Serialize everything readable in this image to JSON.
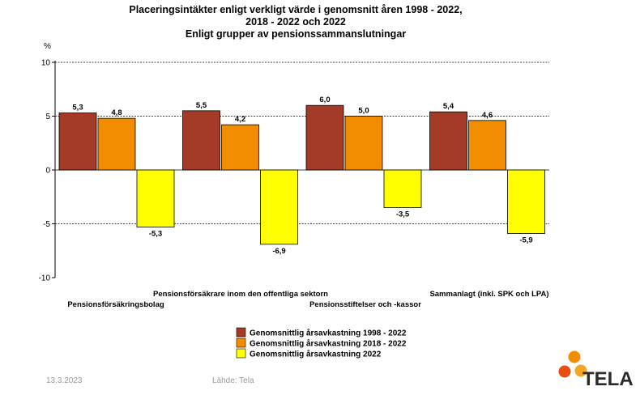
{
  "chart_data": {
    "type": "bar",
    "title_lines": [
      "Placeringsintäkter enligt verkligt värde i genomsnitt åren 1998 - 2022,",
      "2018 - 2022 och 2022",
      "Enligt grupper av pensionssammanslutningar"
    ],
    "ylabel": "%",
    "ylim": [
      -10,
      10
    ],
    "yticks": [
      10,
      5,
      0,
      -5,
      -10
    ],
    "grid": true,
    "legend_position": "bottom-center",
    "categories": [
      "Pensionsförsäkringsbolag",
      "Pensionsförsäkrare inom den offentliga sektorn",
      "Pensionsstiftelser och -kassor",
      "Sammanlagt (inkl. SPK och LPA)"
    ],
    "series": [
      {
        "name": "Genomsnittlig årsavkastning 1998 - 2022",
        "color": "#a33b26",
        "values": [
          5.3,
          5.5,
          6.0,
          5.4
        ],
        "labels": [
          "5,3",
          "5,5",
          "6,0",
          "5,4"
        ]
      },
      {
        "name": "Genomsnittlig årsavkastning 2018 - 2022",
        "color": "#f28c00",
        "values": [
          4.8,
          4.2,
          5.0,
          4.6
        ],
        "labels": [
          "4,8",
          "4,2",
          "5,0",
          "4,6"
        ]
      },
      {
        "name": "Genomsnittlig årsavkastning 2022",
        "color": "#ffff00",
        "values": [
          -5.3,
          -6.9,
          -3.5,
          -5.9
        ],
        "labels": [
          "-5,3",
          "-6,9",
          "-3,5",
          "-5,9"
        ]
      }
    ]
  },
  "footer": {
    "date": "13.3.2023",
    "source": "Lähde: Tela"
  },
  "logo": {
    "text": "TELA",
    "colors": [
      "#f28c00",
      "#e84e0f",
      "#f5a623"
    ]
  }
}
